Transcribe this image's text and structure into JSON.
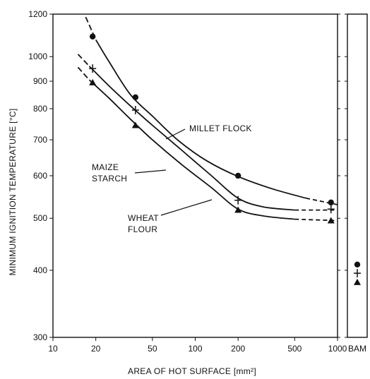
{
  "chart_data": {
    "type": "line",
    "xlabel": "AREA OF HOT SURFACE [mm²]",
    "ylabel": "MINIMUM IGNITION TEMPERATURE [°C]",
    "x_scale": "log",
    "y_scale": "log",
    "xlim": [
      10,
      1000
    ],
    "ylim": [
      300,
      1200
    ],
    "x_ticks": [
      10,
      20,
      50,
      100,
      200,
      500,
      1000
    ],
    "y_ticks": [
      300,
      400,
      500,
      600,
      700,
      800,
      900,
      1000,
      1200
    ],
    "bam_label": "BAM",
    "series": [
      {
        "name": "MILLET FLOCK",
        "marker": "circle",
        "x": [
          19,
          38,
          200,
          900
        ],
        "y": [
          1090,
          840,
          600,
          535
        ],
        "curve": [
          [
            17,
            1185
          ],
          [
            20,
            1075
          ],
          [
            25,
            975
          ],
          [
            35,
            850
          ],
          [
            50,
            775
          ],
          [
            75,
            700
          ],
          [
            120,
            640
          ],
          [
            200,
            598
          ],
          [
            350,
            567
          ],
          [
            600,
            545
          ],
          [
            1000,
            530
          ]
        ],
        "bam": 410
      },
      {
        "name": "MAIZE\nSTARCH",
        "marker": "plus",
        "x": [
          19,
          38,
          200,
          900
        ],
        "y": [
          950,
          795,
          540,
          520
        ],
        "curve": [
          [
            15,
            1010
          ],
          [
            18,
            960
          ],
          [
            25,
            880
          ],
          [
            35,
            810
          ],
          [
            50,
            745
          ],
          [
            80,
            670
          ],
          [
            130,
            600
          ],
          [
            200,
            545
          ],
          [
            300,
            525
          ],
          [
            500,
            518
          ],
          [
            1000,
            518
          ]
        ],
        "bam": 395
      },
      {
        "name": "WHEAT\nFLOUR",
        "marker": "triangle",
        "x": [
          19,
          38,
          200,
          900
        ],
        "y": [
          895,
          745,
          518,
          495
        ],
        "curve": [
          [
            15,
            955
          ],
          [
            18,
            905
          ],
          [
            25,
            835
          ],
          [
            35,
            765
          ],
          [
            50,
            700
          ],
          [
            80,
            630
          ],
          [
            130,
            570
          ],
          [
            200,
            520
          ],
          [
            300,
            505
          ],
          [
            500,
            498
          ],
          [
            1000,
            495
          ]
        ],
        "bam": 380
      }
    ]
  }
}
